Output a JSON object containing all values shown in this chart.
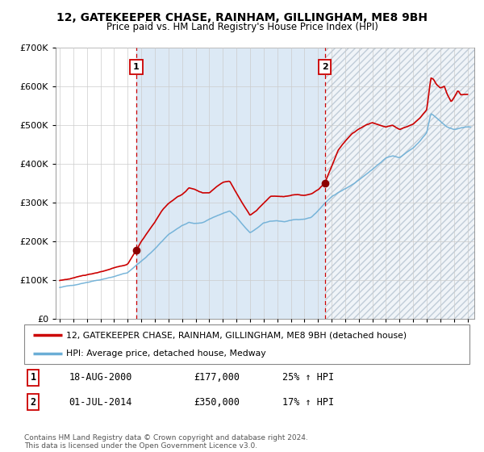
{
  "title": "12, GATEKEEPER CHASE, RAINHAM, GILLINGHAM, ME8 9BH",
  "subtitle": "Price paid vs. HM Land Registry's House Price Index (HPI)",
  "legend_line1": "12, GATEKEEPER CHASE, RAINHAM, GILLINGHAM, ME8 9BH (detached house)",
  "legend_line2": "HPI: Average price, detached house, Medway",
  "footnote": "Contains HM Land Registry data © Crown copyright and database right 2024.\nThis data is licensed under the Open Government Licence v3.0.",
  "sale1_label": "1",
  "sale1_date": "18-AUG-2000",
  "sale1_price": "£177,000",
  "sale1_hpi": "25% ↑ HPI",
  "sale1_year": 2000.63,
  "sale1_value": 177000,
  "sale2_label": "2",
  "sale2_date": "01-JUL-2014",
  "sale2_price": "£350,000",
  "sale2_hpi": "17% ↑ HPI",
  "sale2_year": 2014.5,
  "sale2_value": 350000,
  "hpi_color": "#6baed6",
  "price_color": "#cc0000",
  "dot_color": "#8b0000",
  "bg_color_between": "#dce9f5",
  "bg_color_after": "#e8eef5",
  "grid_color": "#cccccc",
  "vline_color": "#cc0000",
  "ylim": [
    0,
    700000
  ],
  "xlim_start": 1994.7,
  "xlim_end": 2025.5,
  "hpi_waypoints": {
    "1995.0": 80000,
    "1996.0": 87000,
    "1997.0": 94000,
    "1998.0": 101000,
    "1999.0": 109000,
    "2000.0": 119000,
    "2001.0": 148000,
    "2002.0": 180000,
    "2003.0": 218000,
    "2004.0": 240000,
    "2004.5": 248000,
    "2005.0": 245000,
    "2005.5": 248000,
    "2006.0": 257000,
    "2007.0": 272000,
    "2007.5": 278000,
    "2008.0": 262000,
    "2008.5": 240000,
    "2009.0": 222000,
    "2009.5": 232000,
    "2010.0": 247000,
    "2010.5": 252000,
    "2011.0": 253000,
    "2011.5": 250000,
    "2012.0": 253000,
    "2012.5": 255000,
    "2013.0": 257000,
    "2013.5": 262000,
    "2014.0": 278000,
    "2014.5": 298000,
    "2015.0": 315000,
    "2016.0": 335000,
    "2017.0": 358000,
    "2018.0": 385000,
    "2018.5": 400000,
    "2019.0": 415000,
    "2019.5": 420000,
    "2020.0": 415000,
    "2020.5": 428000,
    "2021.0": 440000,
    "2021.5": 458000,
    "2022.0": 480000,
    "2022.3": 530000,
    "2022.5": 525000,
    "2023.0": 510000,
    "2023.5": 495000,
    "2024.0": 488000,
    "2024.5": 492000,
    "2025.0": 495000
  },
  "price_waypoints": {
    "1995.0": 98000,
    "1995.5": 100000,
    "1996.0": 106000,
    "1997.0": 113000,
    "1998.0": 121000,
    "1999.0": 130000,
    "1999.5": 135000,
    "2000.0": 141000,
    "2000.63": 177000,
    "2001.0": 200000,
    "2001.5": 225000,
    "2002.0": 250000,
    "2002.5": 278000,
    "2003.0": 298000,
    "2003.5": 310000,
    "2004.0": 320000,
    "2004.5": 338000,
    "2005.0": 332000,
    "2005.5": 325000,
    "2006.0": 325000,
    "2006.5": 340000,
    "2007.0": 352000,
    "2007.5": 356000,
    "2008.0": 325000,
    "2008.5": 295000,
    "2009.0": 267000,
    "2009.5": 280000,
    "2010.0": 298000,
    "2010.5": 315000,
    "2011.0": 317000,
    "2011.5": 315000,
    "2012.0": 318000,
    "2012.5": 320000,
    "2013.0": 318000,
    "2013.5": 322000,
    "2014.0": 332000,
    "2014.5": 350000,
    "2015.0": 392000,
    "2015.5": 435000,
    "2016.0": 458000,
    "2016.5": 478000,
    "2017.0": 490000,
    "2017.5": 500000,
    "2018.0": 505000,
    "2018.5": 500000,
    "2019.0": 495000,
    "2019.5": 500000,
    "2020.0": 488000,
    "2020.5": 495000,
    "2021.0": 502000,
    "2021.5": 518000,
    "2022.0": 540000,
    "2022.3": 622000,
    "2022.5": 618000,
    "2022.7": 605000,
    "2023.0": 595000,
    "2023.3": 600000,
    "2023.5": 580000,
    "2023.8": 560000,
    "2024.0": 570000,
    "2024.3": 590000,
    "2024.5": 578000,
    "2025.0": 578000
  }
}
